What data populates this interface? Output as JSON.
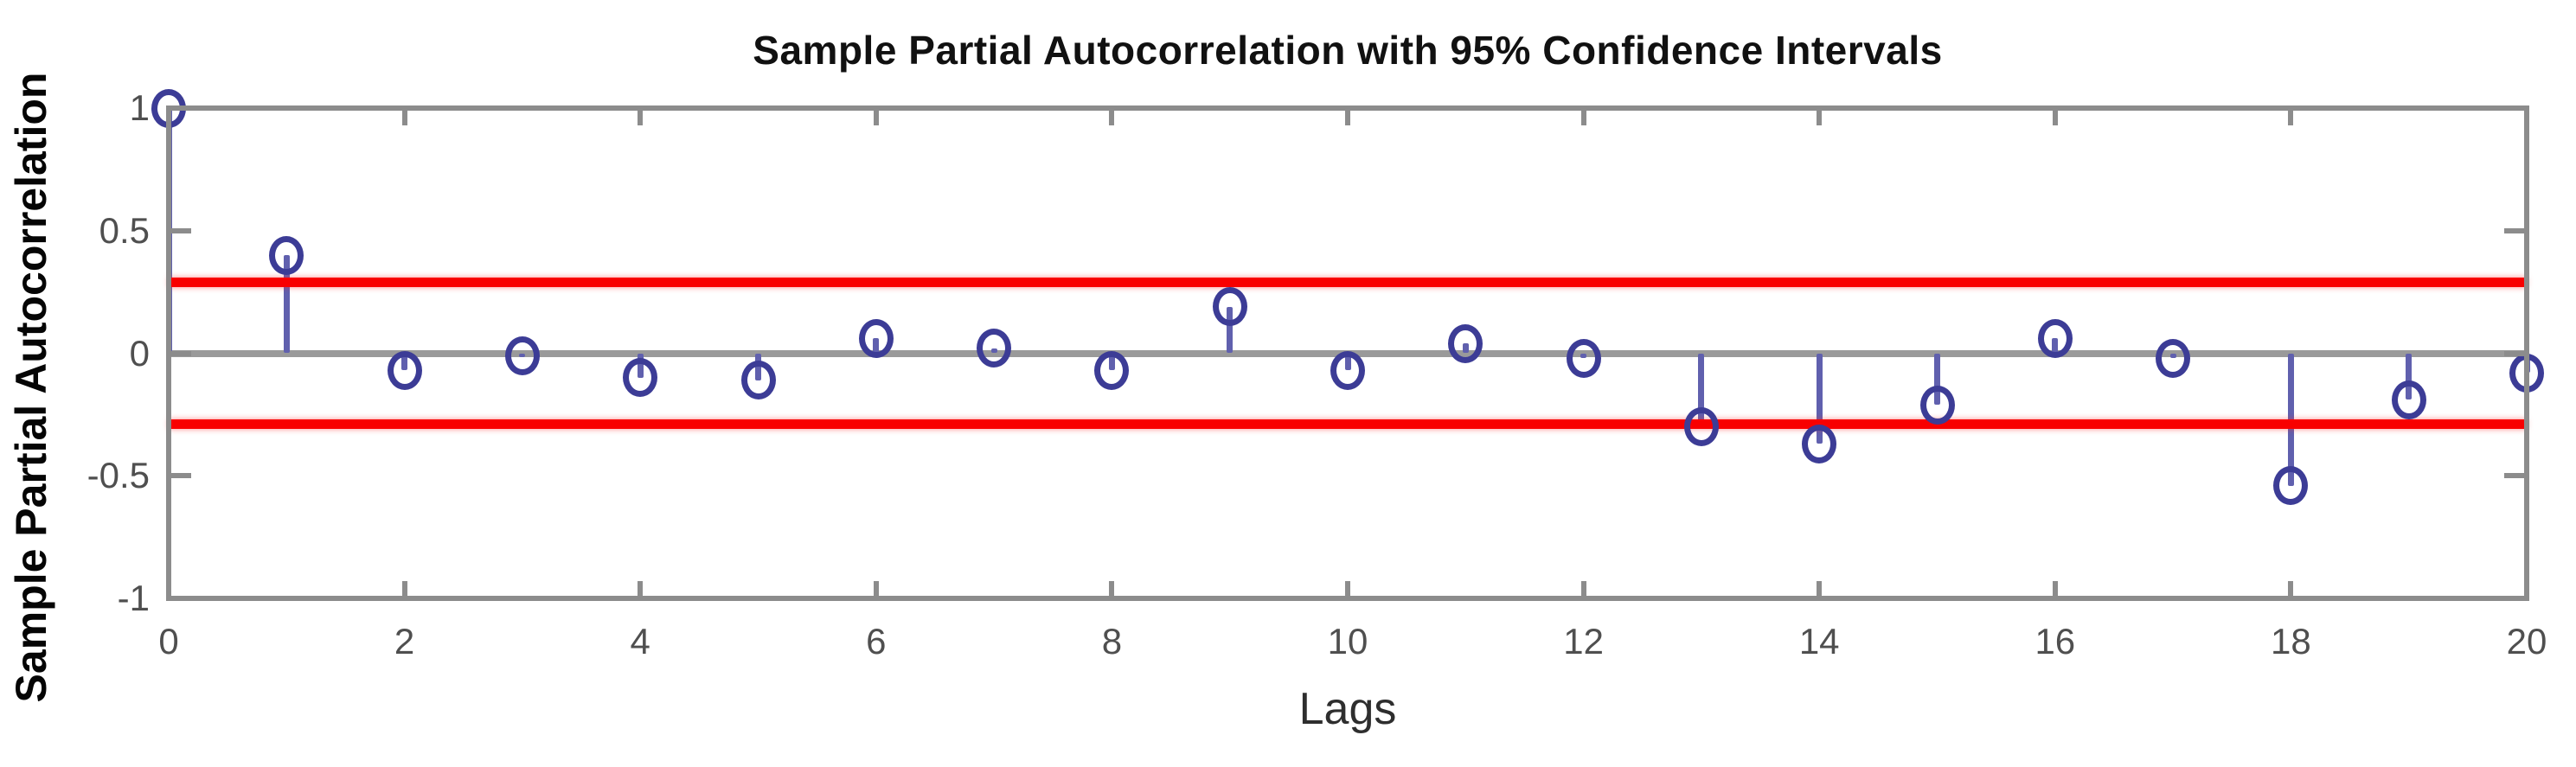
{
  "figure": {
    "title": "Sample Partial Autocorrelation with 95% Confidence Intervals",
    "xlabel": "Lags",
    "ylabel": "Sample Partial Autocorrelation"
  },
  "chart_data": {
    "type": "stem",
    "title": "Sample Partial Autocorrelation with 95% Confidence Intervals",
    "xlabel": "Lags",
    "ylabel": "Sample Partial Autocorrelation",
    "x": [
      0,
      1,
      2,
      3,
      4,
      5,
      6,
      7,
      8,
      9,
      10,
      11,
      12,
      13,
      14,
      15,
      16,
      17,
      18,
      19,
      20
    ],
    "values": [
      1.0,
      0.4,
      -0.07,
      -0.01,
      -0.1,
      -0.11,
      0.06,
      0.02,
      -0.07,
      0.19,
      -0.07,
      0.04,
      -0.02,
      -0.3,
      -0.37,
      -0.21,
      0.06,
      -0.02,
      -0.54,
      -0.19,
      -0.08
    ],
    "confidence_bounds": {
      "upper": 0.29,
      "lower": -0.29
    },
    "zero_line": 0,
    "xlim": [
      0,
      20
    ],
    "ylim": [
      -1,
      1
    ],
    "xtick_labels": [
      "0",
      "2",
      "4",
      "6",
      "8",
      "10",
      "12",
      "14",
      "16",
      "18",
      "20"
    ],
    "xticks": [
      0,
      2,
      4,
      6,
      8,
      10,
      12,
      14,
      16,
      18,
      20
    ],
    "ytick_labels": [
      "1",
      "0.5",
      "0",
      "-0.5",
      "-1"
    ],
    "yticks": [
      1,
      0.5,
      0,
      -0.5,
      -1
    ],
    "grid": false,
    "legend": "none",
    "colors": {
      "stem": "#6060ae",
      "marker_edge": "#3c3c96",
      "confidence_line": "#f80000",
      "zero_line": "#9a9a9a",
      "axis": "#8c8c8c",
      "tick_label": "#4f4f4f",
      "title": "#111111"
    }
  }
}
